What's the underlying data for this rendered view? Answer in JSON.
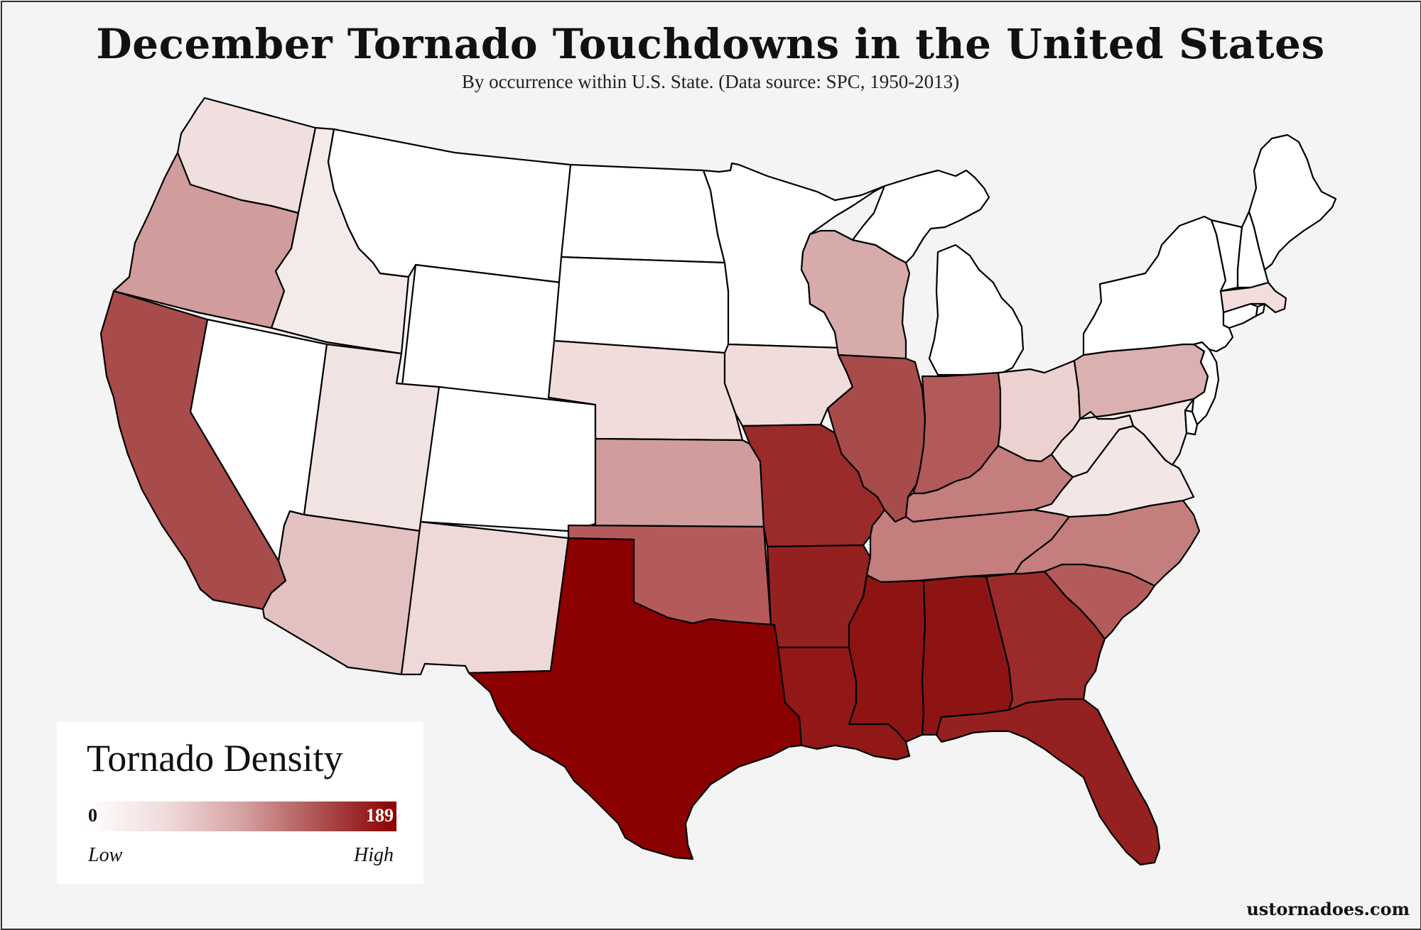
{
  "title": "December Tornado Touchdowns in the United States",
  "subtitle": "By occurrence within U.S. State. (Data source: SPC, 1950-2013)",
  "legend": {
    "title": "Tornado Density",
    "min_value": "0",
    "max_value": "189",
    "low_label": "Low",
    "high_label": "High",
    "color_low": "#ffffff",
    "color_high": "#8b0000"
  },
  "credit": "ustornadoes.com",
  "states": [
    {
      "id": "WA",
      "name": "Washington",
      "fill": "#f1dede"
    },
    {
      "id": "OR",
      "name": "Oregon",
      "fill": "#d09c9c"
    },
    {
      "id": "CA",
      "name": "California",
      "fill": "#a84b4b"
    },
    {
      "id": "ID",
      "name": "Idaho",
      "fill": "#f5eaea"
    },
    {
      "id": "NV",
      "name": "Nevada",
      "fill": "#ffffff"
    },
    {
      "id": "MT",
      "name": "Montana",
      "fill": "#ffffff"
    },
    {
      "id": "WY",
      "name": "Wyoming",
      "fill": "#ffffff"
    },
    {
      "id": "UT",
      "name": "Utah",
      "fill": "#f2e3e3"
    },
    {
      "id": "AZ",
      "name": "Arizona",
      "fill": "#e3c1c1"
    },
    {
      "id": "CO",
      "name": "Colorado",
      "fill": "#ffffff"
    },
    {
      "id": "NM",
      "name": "New Mexico",
      "fill": "#efd8d8"
    },
    {
      "id": "ND",
      "name": "North Dakota",
      "fill": "#ffffff"
    },
    {
      "id": "SD",
      "name": "South Dakota",
      "fill": "#ffffff"
    },
    {
      "id": "NE",
      "name": "Nebraska",
      "fill": "#f1dcdc"
    },
    {
      "id": "KS",
      "name": "Kansas",
      "fill": "#d09c9c"
    },
    {
      "id": "OK",
      "name": "Oklahoma",
      "fill": "#b55a5a"
    },
    {
      "id": "TX",
      "name": "Texas",
      "fill": "#8b0000"
    },
    {
      "id": "MN",
      "name": "Minnesota",
      "fill": "#ffffff"
    },
    {
      "id": "IA",
      "name": "Iowa",
      "fill": "#f1dcdc"
    },
    {
      "id": "MO",
      "name": "Missouri",
      "fill": "#9b2a2a"
    },
    {
      "id": "AR",
      "name": "Arkansas",
      "fill": "#952020"
    },
    {
      "id": "LA",
      "name": "Louisiana",
      "fill": "#921818"
    },
    {
      "id": "WI",
      "name": "Wisconsin",
      "fill": "#d8abab"
    },
    {
      "id": "IL",
      "name": "Illinois",
      "fill": "#a84b4b"
    },
    {
      "id": "MI",
      "name": "Michigan",
      "fill": "#ffffff"
    },
    {
      "id": "IN",
      "name": "Indiana",
      "fill": "#b25a5a"
    },
    {
      "id": "OH",
      "name": "Ohio",
      "fill": "#ecd1d1"
    },
    {
      "id": "KY",
      "name": "Kentucky",
      "fill": "#c47e7e"
    },
    {
      "id": "TN",
      "name": "Tennessee",
      "fill": "#c47e7e"
    },
    {
      "id": "MS",
      "name": "Mississippi",
      "fill": "#8e1414"
    },
    {
      "id": "AL",
      "name": "Alabama",
      "fill": "#8e1414"
    },
    {
      "id": "GA",
      "name": "Georgia",
      "fill": "#9b2a2a"
    },
    {
      "id": "FL",
      "name": "Florida",
      "fill": "#952020"
    },
    {
      "id": "SC",
      "name": "South Carolina",
      "fill": "#b55a5a"
    },
    {
      "id": "NC",
      "name": "North Carolina",
      "fill": "#c47e7e"
    },
    {
      "id": "VA",
      "name": "Virginia",
      "fill": "#f5e6e6"
    },
    {
      "id": "WV",
      "name": "West Virginia",
      "fill": "#f3e4e4"
    },
    {
      "id": "PA",
      "name": "Pennsylvania",
      "fill": "#dbb0b0"
    },
    {
      "id": "NY",
      "name": "New York",
      "fill": "#ffffff"
    },
    {
      "id": "MD",
      "name": "Maryland",
      "fill": "#f5e8e8"
    },
    {
      "id": "DE",
      "name": "Delaware",
      "fill": "#ffffff"
    },
    {
      "id": "NJ",
      "name": "New Jersey",
      "fill": "#ffffff"
    },
    {
      "id": "CT",
      "name": "Connecticut",
      "fill": "#ffffff"
    },
    {
      "id": "RI",
      "name": "Rhode Island",
      "fill": "#ffffff"
    },
    {
      "id": "MA",
      "name": "Massachusetts",
      "fill": "#f2dcdc"
    },
    {
      "id": "VT",
      "name": "Vermont",
      "fill": "#ffffff"
    },
    {
      "id": "NH",
      "name": "New Hampshire",
      "fill": "#ffffff"
    },
    {
      "id": "ME",
      "name": "Maine",
      "fill": "#ffffff"
    }
  ]
}
